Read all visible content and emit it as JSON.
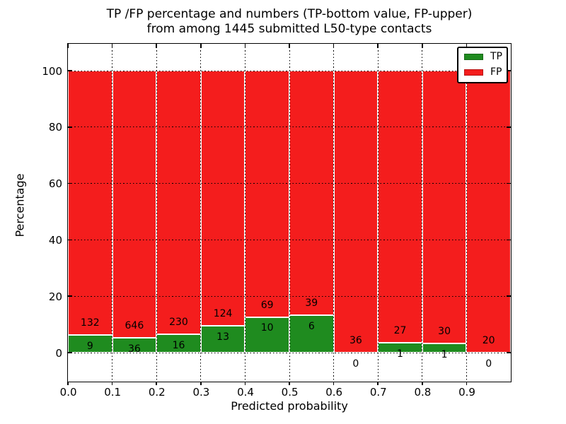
{
  "title": {
    "line1": "TP /FP percentage and numbers (TP-bottom value, FP-upper)",
    "line2": "from among 1445 submitted L50-type contacts"
  },
  "axes": {
    "xlabel": "Predicted probability",
    "ylabel": "Percentage",
    "xtick_labels": [
      "0.0",
      "0.1",
      "0.2",
      "0.3",
      "0.4",
      "0.5",
      "0.6",
      "0.7",
      "0.8",
      "0.9"
    ],
    "ytick_values": [
      0,
      20,
      40,
      60,
      80,
      100
    ],
    "ytick_labels": [
      "0",
      "20",
      "40",
      "60",
      "80",
      "100"
    ],
    "xlim": [
      0.0,
      1.0
    ],
    "ylim": [
      -10.3,
      109.3
    ],
    "grid": "dotted black, drawn over bars"
  },
  "legend": {
    "position": "upper right",
    "items": [
      {
        "label": "TP",
        "color": "#1f8b1f"
      },
      {
        "label": "FP",
        "color": "#f41d1d"
      }
    ]
  },
  "chart_data": {
    "type": "bar",
    "stacked": true,
    "normalization": "each bin scaled to 100%, green = TP share, red = FP share",
    "bin_starts": [
      0.0,
      0.1,
      0.2,
      0.3,
      0.4,
      0.5,
      0.6,
      0.7,
      0.8,
      0.9
    ],
    "bin_width": 0.1,
    "series": [
      {
        "name": "TP",
        "color": "#1f8b1f",
        "values": [
          9,
          36,
          16,
          13,
          10,
          6,
          0,
          1,
          1,
          0
        ]
      },
      {
        "name": "FP",
        "color": "#f41d1d",
        "values": [
          132,
          646,
          230,
          124,
          69,
          39,
          36,
          27,
          30,
          20
        ]
      }
    ],
    "tp_percent_per_bin": [
      6.38,
      5.28,
      6.5,
      9.49,
      12.66,
      13.33,
      0,
      3.57,
      3.23,
      0
    ],
    "total_contacts": 1445,
    "title": "TP /FP percentage and numbers (TP-bottom value, FP-upper) from among 1445 submitted L50-type contacts",
    "xlabel": "Predicted probability",
    "ylabel": "Percentage"
  },
  "colors": {
    "tp_green": "#1f8b1f",
    "fp_red": "#f41d1d",
    "background": "#ffffff",
    "grid": "#000000",
    "bar_edge": "#ffffff"
  }
}
